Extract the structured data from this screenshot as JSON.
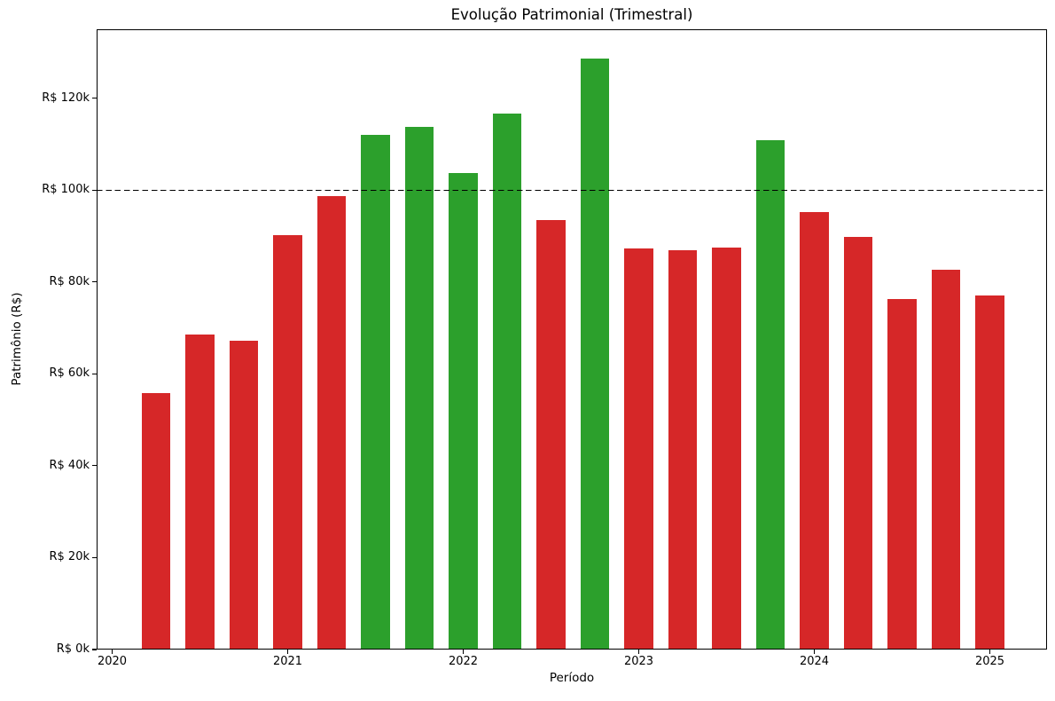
{
  "chart_data": {
    "type": "bar",
    "title": "Evolução Patrimonial (Trimestral)",
    "xlabel": "Período",
    "ylabel": "Patrimônio (R$)",
    "categories": [
      "2020-Q2",
      "2020-Q3",
      "2020-Q4",
      "2021-Q1",
      "2021-Q2",
      "2021-Q3",
      "2021-Q4",
      "2022-Q1",
      "2022-Q2",
      "2022-Q3",
      "2022-Q4",
      "2023-Q1",
      "2023-Q2",
      "2023-Q3",
      "2023-Q4",
      "2024-Q1",
      "2024-Q2",
      "2024-Q3",
      "2024-Q4",
      "2025-Q1"
    ],
    "values": [
      55900,
      68500,
      67300,
      90100,
      98600,
      112000,
      113800,
      103700,
      116700,
      93500,
      128700,
      87300,
      86900,
      87500,
      110900,
      95200,
      89800,
      76200,
      82600,
      77000
    ],
    "threshold": 100000,
    "color_above_threshold": "#2ca02c",
    "color_below_threshold": "#d62728",
    "reference_line": {
      "value": 100000,
      "color": "#000000",
      "style": "dashed"
    },
    "x_tick_labels": [
      "2020",
      "2021",
      "2022",
      "2023",
      "2024",
      "2025"
    ],
    "y_ticks": [
      {
        "value": 0,
        "label": "R$ 0k"
      },
      {
        "value": 20000,
        "label": "R$ 20k"
      },
      {
        "value": 40000,
        "label": "R$ 40k"
      },
      {
        "value": 60000,
        "label": "R$ 60k"
      },
      {
        "value": 80000,
        "label": "R$ 80k"
      },
      {
        "value": 100000,
        "label": "R$ 100k"
      },
      {
        "value": 120000,
        "label": "R$ 120k"
      }
    ],
    "ylim": [
      0,
      135000
    ],
    "grid": false,
    "legend": false,
    "background_color": "#ffffff",
    "text_color": "#000000"
  }
}
